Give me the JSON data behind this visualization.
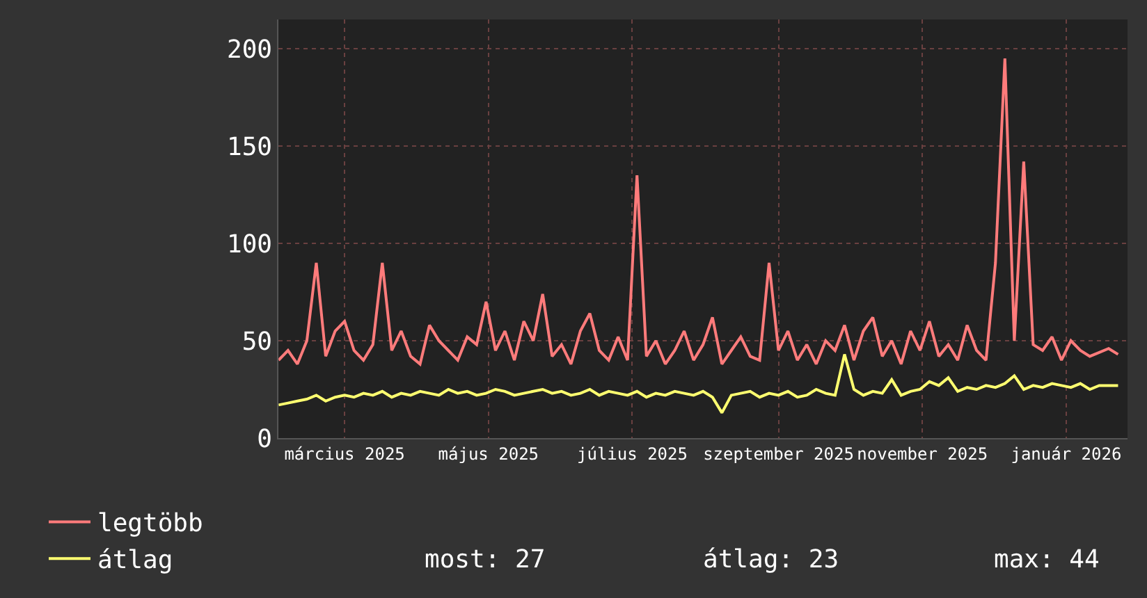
{
  "chart_data": {
    "type": "line",
    "x": [
      "2025-02-01",
      "2025-02-05",
      "2025-02-09",
      "2025-02-13",
      "2025-02-17",
      "2025-02-21",
      "2025-02-25",
      "2025-03-01",
      "2025-03-05",
      "2025-03-09",
      "2025-03-13",
      "2025-03-17",
      "2025-03-21",
      "2025-03-25",
      "2025-03-29",
      "2025-04-02",
      "2025-04-06",
      "2025-04-10",
      "2025-04-14",
      "2025-04-18",
      "2025-04-22",
      "2025-04-26",
      "2025-04-30",
      "2025-05-04",
      "2025-05-08",
      "2025-05-12",
      "2025-05-16",
      "2025-05-20",
      "2025-05-24",
      "2025-05-28",
      "2025-06-01",
      "2025-06-05",
      "2025-06-09",
      "2025-06-13",
      "2025-06-17",
      "2025-06-21",
      "2025-06-25",
      "2025-06-29",
      "2025-07-03",
      "2025-07-07",
      "2025-07-11",
      "2025-07-15",
      "2025-07-19",
      "2025-07-23",
      "2025-07-27",
      "2025-07-31",
      "2025-08-04",
      "2025-08-08",
      "2025-08-12",
      "2025-08-16",
      "2025-08-20",
      "2025-08-24",
      "2025-08-28",
      "2025-09-01",
      "2025-09-05",
      "2025-09-09",
      "2025-09-13",
      "2025-09-17",
      "2025-09-21",
      "2025-09-25",
      "2025-09-29",
      "2025-10-03",
      "2025-10-07",
      "2025-10-11",
      "2025-10-15",
      "2025-10-19",
      "2025-10-23",
      "2025-10-27",
      "2025-10-31",
      "2025-11-04",
      "2025-11-08",
      "2025-11-12",
      "2025-11-16",
      "2025-11-20",
      "2025-11-24",
      "2025-11-28",
      "2025-12-02",
      "2025-12-06",
      "2025-12-10",
      "2025-12-14",
      "2025-12-18",
      "2025-12-22",
      "2025-12-26",
      "2025-12-30",
      "2026-01-03",
      "2026-01-07",
      "2026-01-11",
      "2026-01-15",
      "2026-01-19",
      "2026-01-23"
    ],
    "series": [
      {
        "name": "legtöbb",
        "color": "#ff7b7b",
        "values": [
          40,
          45,
          38,
          50,
          90,
          42,
          55,
          60,
          45,
          40,
          48,
          90,
          45,
          55,
          42,
          38,
          58,
          50,
          45,
          40,
          52,
          48,
          70,
          45,
          55,
          40,
          60,
          50,
          74,
          42,
          48,
          38,
          55,
          64,
          45,
          40,
          52,
          40,
          135,
          42,
          50,
          38,
          45,
          55,
          40,
          48,
          62,
          38,
          45,
          52,
          42,
          40,
          90,
          45,
          55,
          40,
          48,
          38,
          50,
          45,
          58,
          40,
          55,
          62,
          42,
          50,
          38,
          55,
          45,
          60,
          42,
          48,
          40,
          58,
          45,
          40,
          90,
          195,
          50,
          142,
          48,
          45,
          52,
          40,
          50,
          45,
          42,
          44,
          46,
          43
        ]
      },
      {
        "name": "átlag",
        "color": "#ffff70",
        "values": [
          17,
          18,
          19,
          20,
          22,
          19,
          21,
          22,
          21,
          23,
          22,
          24,
          21,
          23,
          22,
          24,
          23,
          22,
          25,
          23,
          24,
          22,
          23,
          25,
          24,
          22,
          23,
          24,
          25,
          23,
          24,
          22,
          23,
          25,
          22,
          24,
          23,
          22,
          24,
          21,
          23,
          22,
          24,
          23,
          22,
          24,
          21,
          13,
          22,
          23,
          24,
          21,
          23,
          22,
          24,
          21,
          22,
          25,
          23,
          22,
          43,
          25,
          22,
          24,
          23,
          30,
          22,
          24,
          25,
          29,
          27,
          31,
          24,
          26,
          25,
          27,
          26,
          28,
          32,
          25,
          27,
          26,
          28,
          27,
          26,
          28,
          25,
          27,
          27,
          27
        ]
      }
    ],
    "xlim": [
      "2025-02-01",
      "2026-01-27"
    ],
    "xticks": [
      {
        "value": "2025-03-01",
        "label": "március 2025"
      },
      {
        "value": "2025-05-01",
        "label": "május 2025"
      },
      {
        "value": "2025-07-01",
        "label": "július 2025"
      },
      {
        "value": "2025-09-01",
        "label": "szeptember 2025"
      },
      {
        "value": "2025-11-01",
        "label": "november 2025"
      },
      {
        "value": "2026-01-01",
        "label": "január 2026"
      }
    ],
    "ylim": [
      0,
      215
    ],
    "yticks": [
      0,
      50,
      100,
      150,
      200
    ],
    "grid": true,
    "legend": "bottom",
    "marker": "none",
    "line_style": "solid",
    "annotations": [
      "most: 27",
      "átlag: 23",
      "max: 44"
    ]
  }
}
